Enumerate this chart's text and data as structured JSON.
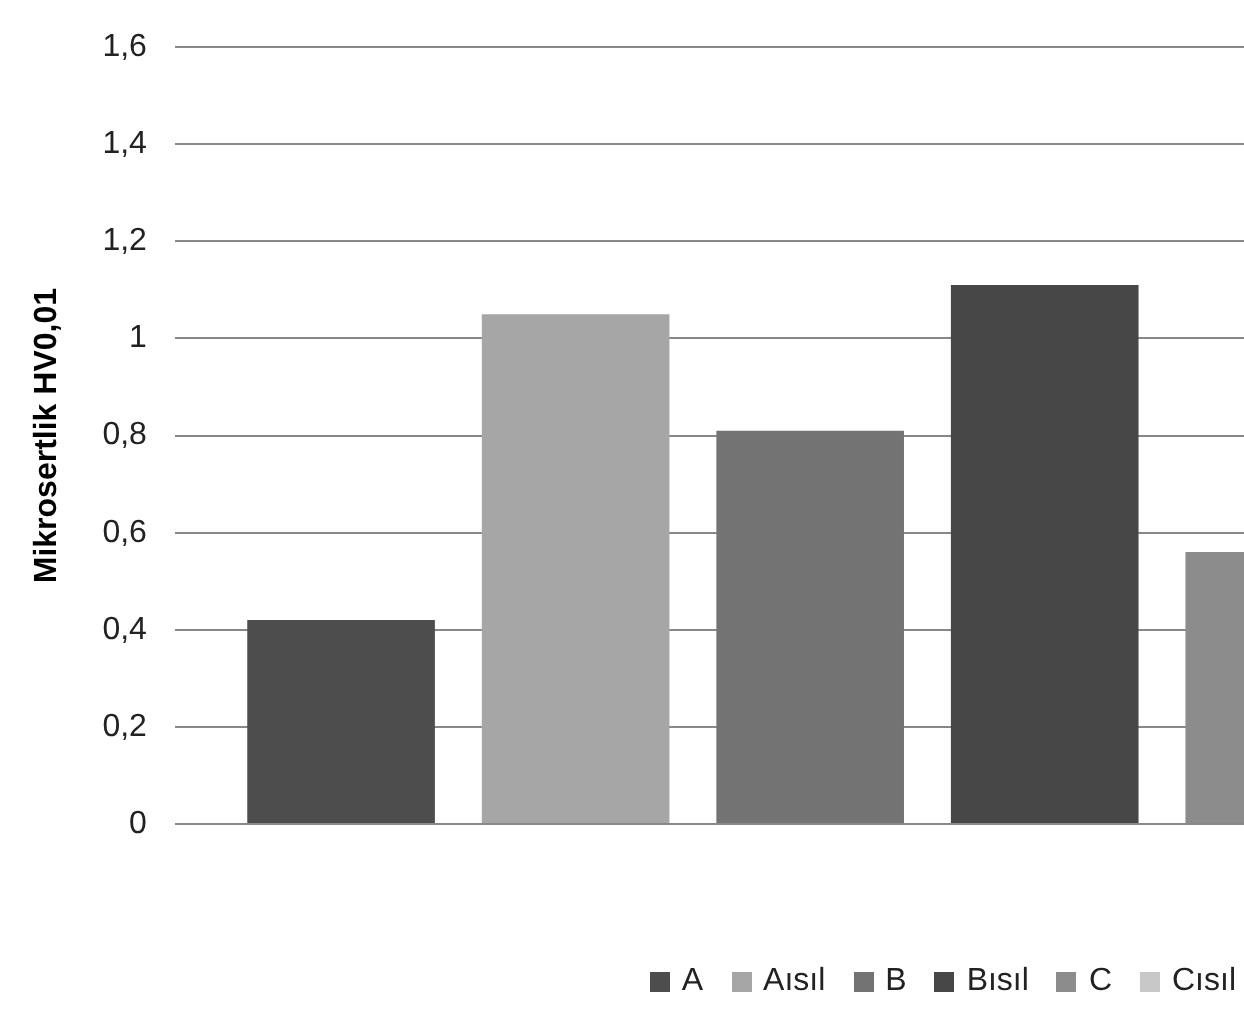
{
  "chart_data": {
    "type": "bar",
    "ylabel": "Mikrosertlik HV0,01",
    "categories": [
      null
    ],
    "series": [
      {
        "name": "A",
        "color": "#4d4d4d",
        "values": [
          0.42
        ]
      },
      {
        "name": "Aısıl",
        "color": "#a6a6a6",
        "values": [
          1.05
        ]
      },
      {
        "name": "B",
        "color": "#737373",
        "values": [
          0.81
        ]
      },
      {
        "name": "Bısıl",
        "color": "#474747",
        "values": [
          1.11
        ]
      },
      {
        "name": "C",
        "color": "#8c8c8c",
        "values": [
          0.56
        ]
      },
      {
        "name": "Cısıl",
        "color": "#c8c8c8",
        "values": [
          null
        ]
      }
    ],
    "ylim": [
      0,
      1.6
    ],
    "yticks": [
      0,
      {
        "value": 0.2,
        "label": "0,2"
      },
      {
        "value": 0.4,
        "label": "0,4"
      },
      {
        "value": 0.6,
        "label": "0,6"
      },
      {
        "value": 0.8,
        "label": "0,8"
      },
      1,
      {
        "value": 1.2,
        "label": "1,2"
      },
      {
        "value": 1.4,
        "label": "1,4"
      },
      {
        "value": 1.6,
        "label": "1,6"
      }
    ],
    "grid": "y",
    "legend": "bottom"
  }
}
